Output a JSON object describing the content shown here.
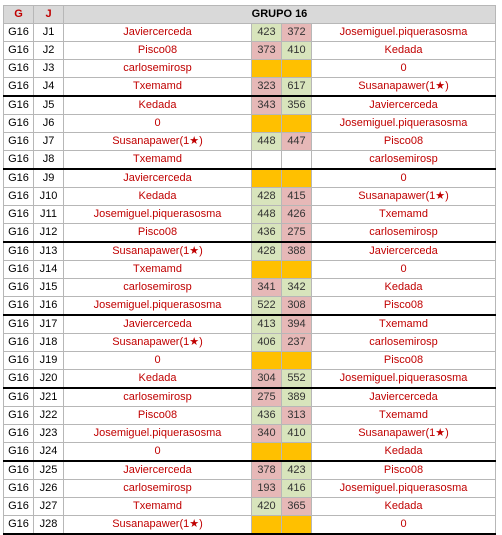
{
  "header": {
    "g": "G",
    "j": "J",
    "title": "GRUPO 16"
  },
  "rows": [
    {
      "g": "G16",
      "j": "J1",
      "p1": "Javiercerceda",
      "s1": "423",
      "s2": "372",
      "p2": "Josemiguel.piquerasosma",
      "c1": "win",
      "c2": "lose"
    },
    {
      "g": "G16",
      "j": "J2",
      "p1": "Pisco08",
      "s1": "373",
      "s2": "410",
      "p2": "Kedada",
      "c1": "lose",
      "c2": "win"
    },
    {
      "g": "G16",
      "j": "J3",
      "p1": "carlosemirosp",
      "s1": "",
      "s2": "",
      "p2": "0",
      "c1": "empty",
      "c2": "empty"
    },
    {
      "g": "G16",
      "j": "J4",
      "p1": "Txemamd",
      "s1": "323",
      "s2": "617",
      "p2": "Susanapawer(1★)",
      "c1": "lose",
      "c2": "win"
    },
    {
      "g": "G16",
      "j": "J5",
      "p1": "Kedada",
      "s1": "343",
      "s2": "356",
      "p2": "Javiercerceda",
      "c1": "lose",
      "c2": "win"
    },
    {
      "g": "G16",
      "j": "J6",
      "p1": "0",
      "s1": "",
      "s2": "",
      "p2": "Josemiguel.piquerasosma",
      "c1": "empty",
      "c2": "empty"
    },
    {
      "g": "G16",
      "j": "J7",
      "p1": "Susanapawer(1★)",
      "s1": "448",
      "s2": "447",
      "p2": "Pisco08",
      "c1": "win",
      "c2": "lose"
    },
    {
      "g": "G16",
      "j": "J8",
      "p1": "Txemamd",
      "s1": "",
      "s2": "",
      "p2": "carlosemirosp",
      "c1": "blank",
      "c2": "blank"
    },
    {
      "g": "G16",
      "j": "J9",
      "p1": "Javiercerceda",
      "s1": "",
      "s2": "",
      "p2": "0",
      "c1": "empty",
      "c2": "empty"
    },
    {
      "g": "G16",
      "j": "J10",
      "p1": "Kedada",
      "s1": "428",
      "s2": "415",
      "p2": "Susanapawer(1★)",
      "c1": "win",
      "c2": "lose"
    },
    {
      "g": "G16",
      "j": "J11",
      "p1": "Josemiguel.piquerasosma",
      "s1": "448",
      "s2": "426",
      "p2": "Txemamd",
      "c1": "win",
      "c2": "lose"
    },
    {
      "g": "G16",
      "j": "J12",
      "p1": "Pisco08",
      "s1": "436",
      "s2": "275",
      "p2": "carlosemirosp",
      "c1": "win",
      "c2": "lose"
    },
    {
      "g": "G16",
      "j": "J13",
      "p1": "Susanapawer(1★)",
      "s1": "428",
      "s2": "388",
      "p2": "Javiercerceda",
      "c1": "win",
      "c2": "lose"
    },
    {
      "g": "G16",
      "j": "J14",
      "p1": "Txemamd",
      "s1": "",
      "s2": "",
      "p2": "0",
      "c1": "empty",
      "c2": "empty"
    },
    {
      "g": "G16",
      "j": "J15",
      "p1": "carlosemirosp",
      "s1": "341",
      "s2": "342",
      "p2": "Kedada",
      "c1": "lose",
      "c2": "win"
    },
    {
      "g": "G16",
      "j": "J16",
      "p1": "Josemiguel.piquerasosma",
      "s1": "522",
      "s2": "308",
      "p2": "Pisco08",
      "c1": "win",
      "c2": "lose"
    },
    {
      "g": "G16",
      "j": "J17",
      "p1": "Javiercerceda",
      "s1": "413",
      "s2": "394",
      "p2": "Txemamd",
      "c1": "win",
      "c2": "lose"
    },
    {
      "g": "G16",
      "j": "J18",
      "p1": "Susanapawer(1★)",
      "s1": "406",
      "s2": "237",
      "p2": "carlosemirosp",
      "c1": "win",
      "c2": "lose"
    },
    {
      "g": "G16",
      "j": "J19",
      "p1": "0",
      "s1": "",
      "s2": "",
      "p2": "Pisco08",
      "c1": "empty",
      "c2": "empty"
    },
    {
      "g": "G16",
      "j": "J20",
      "p1": "Kedada",
      "s1": "304",
      "s2": "552",
      "p2": "Josemiguel.piquerasosma",
      "c1": "lose",
      "c2": "win"
    },
    {
      "g": "G16",
      "j": "J21",
      "p1": "carlosemirosp",
      "s1": "275",
      "s2": "389",
      "p2": "Javiercerceda",
      "c1": "lose",
      "c2": "win"
    },
    {
      "g": "G16",
      "j": "J22",
      "p1": "Pisco08",
      "s1": "436",
      "s2": "313",
      "p2": "Txemamd",
      "c1": "win",
      "c2": "lose"
    },
    {
      "g": "G16",
      "j": "J23",
      "p1": "Josemiguel.piquerasosma",
      "s1": "340",
      "s2": "410",
      "p2": "Susanapawer(1★)",
      "c1": "lose",
      "c2": "win"
    },
    {
      "g": "G16",
      "j": "J24",
      "p1": "0",
      "s1": "",
      "s2": "",
      "p2": "Kedada",
      "c1": "empty",
      "c2": "empty"
    },
    {
      "g": "G16",
      "j": "J25",
      "p1": "Javiercerceda",
      "s1": "378",
      "s2": "423",
      "p2": "Pisco08",
      "c1": "lose",
      "c2": "win"
    },
    {
      "g": "G16",
      "j": "J26",
      "p1": "carlosemirosp",
      "s1": "193",
      "s2": "416",
      "p2": "Josemiguel.piquerasosma",
      "c1": "lose",
      "c2": "win"
    },
    {
      "g": "G16",
      "j": "J27",
      "p1": "Txemamd",
      "s1": "420",
      "s2": "365",
      "p2": "Kedada",
      "c1": "win",
      "c2": "lose"
    },
    {
      "g": "G16",
      "j": "J28",
      "p1": "Susanapawer(1★)",
      "s1": "",
      "s2": "",
      "p2": "0",
      "c1": "empty",
      "c2": "empty"
    }
  ]
}
